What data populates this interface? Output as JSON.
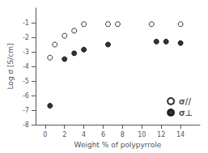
{
  "chart_data": {
    "type": "scatter",
    "xlabel": "Weight % of polypyrrole",
    "ylabel": "Log σ [S/cm]",
    "xlim": [
      -1,
      16
    ],
    "ylim": [
      -8,
      0
    ],
    "xticks": [
      0,
      2,
      4,
      6,
      8,
      10,
      12,
      14
    ],
    "yticks": [
      -8,
      -7,
      -6,
      -5,
      -4,
      -3,
      -2,
      -1
    ],
    "grid": false,
    "legend": "lower right",
    "series": [
      {
        "name": "σ//",
        "color": "#000000",
        "marker": "open_circle",
        "x": [
          0.5,
          1.0,
          2.0,
          3.0,
          4.0,
          6.5,
          7.5,
          11.0,
          14.0
        ],
        "values": [
          -3.4,
          -2.5,
          -1.9,
          -1.55,
          -1.1,
          -1.1,
          -1.1,
          -1.1,
          -1.1
        ]
      },
      {
        "name": "σ⊥",
        "color": "#000000",
        "marker": "circle",
        "x": [
          0.5,
          2.0,
          3.0,
          4.0,
          6.5,
          11.5,
          12.5,
          14.0
        ],
        "values": [
          -6.7,
          -3.5,
          -3.1,
          -2.85,
          -2.5,
          -2.3,
          -2.3,
          -2.4
        ]
      }
    ]
  }
}
